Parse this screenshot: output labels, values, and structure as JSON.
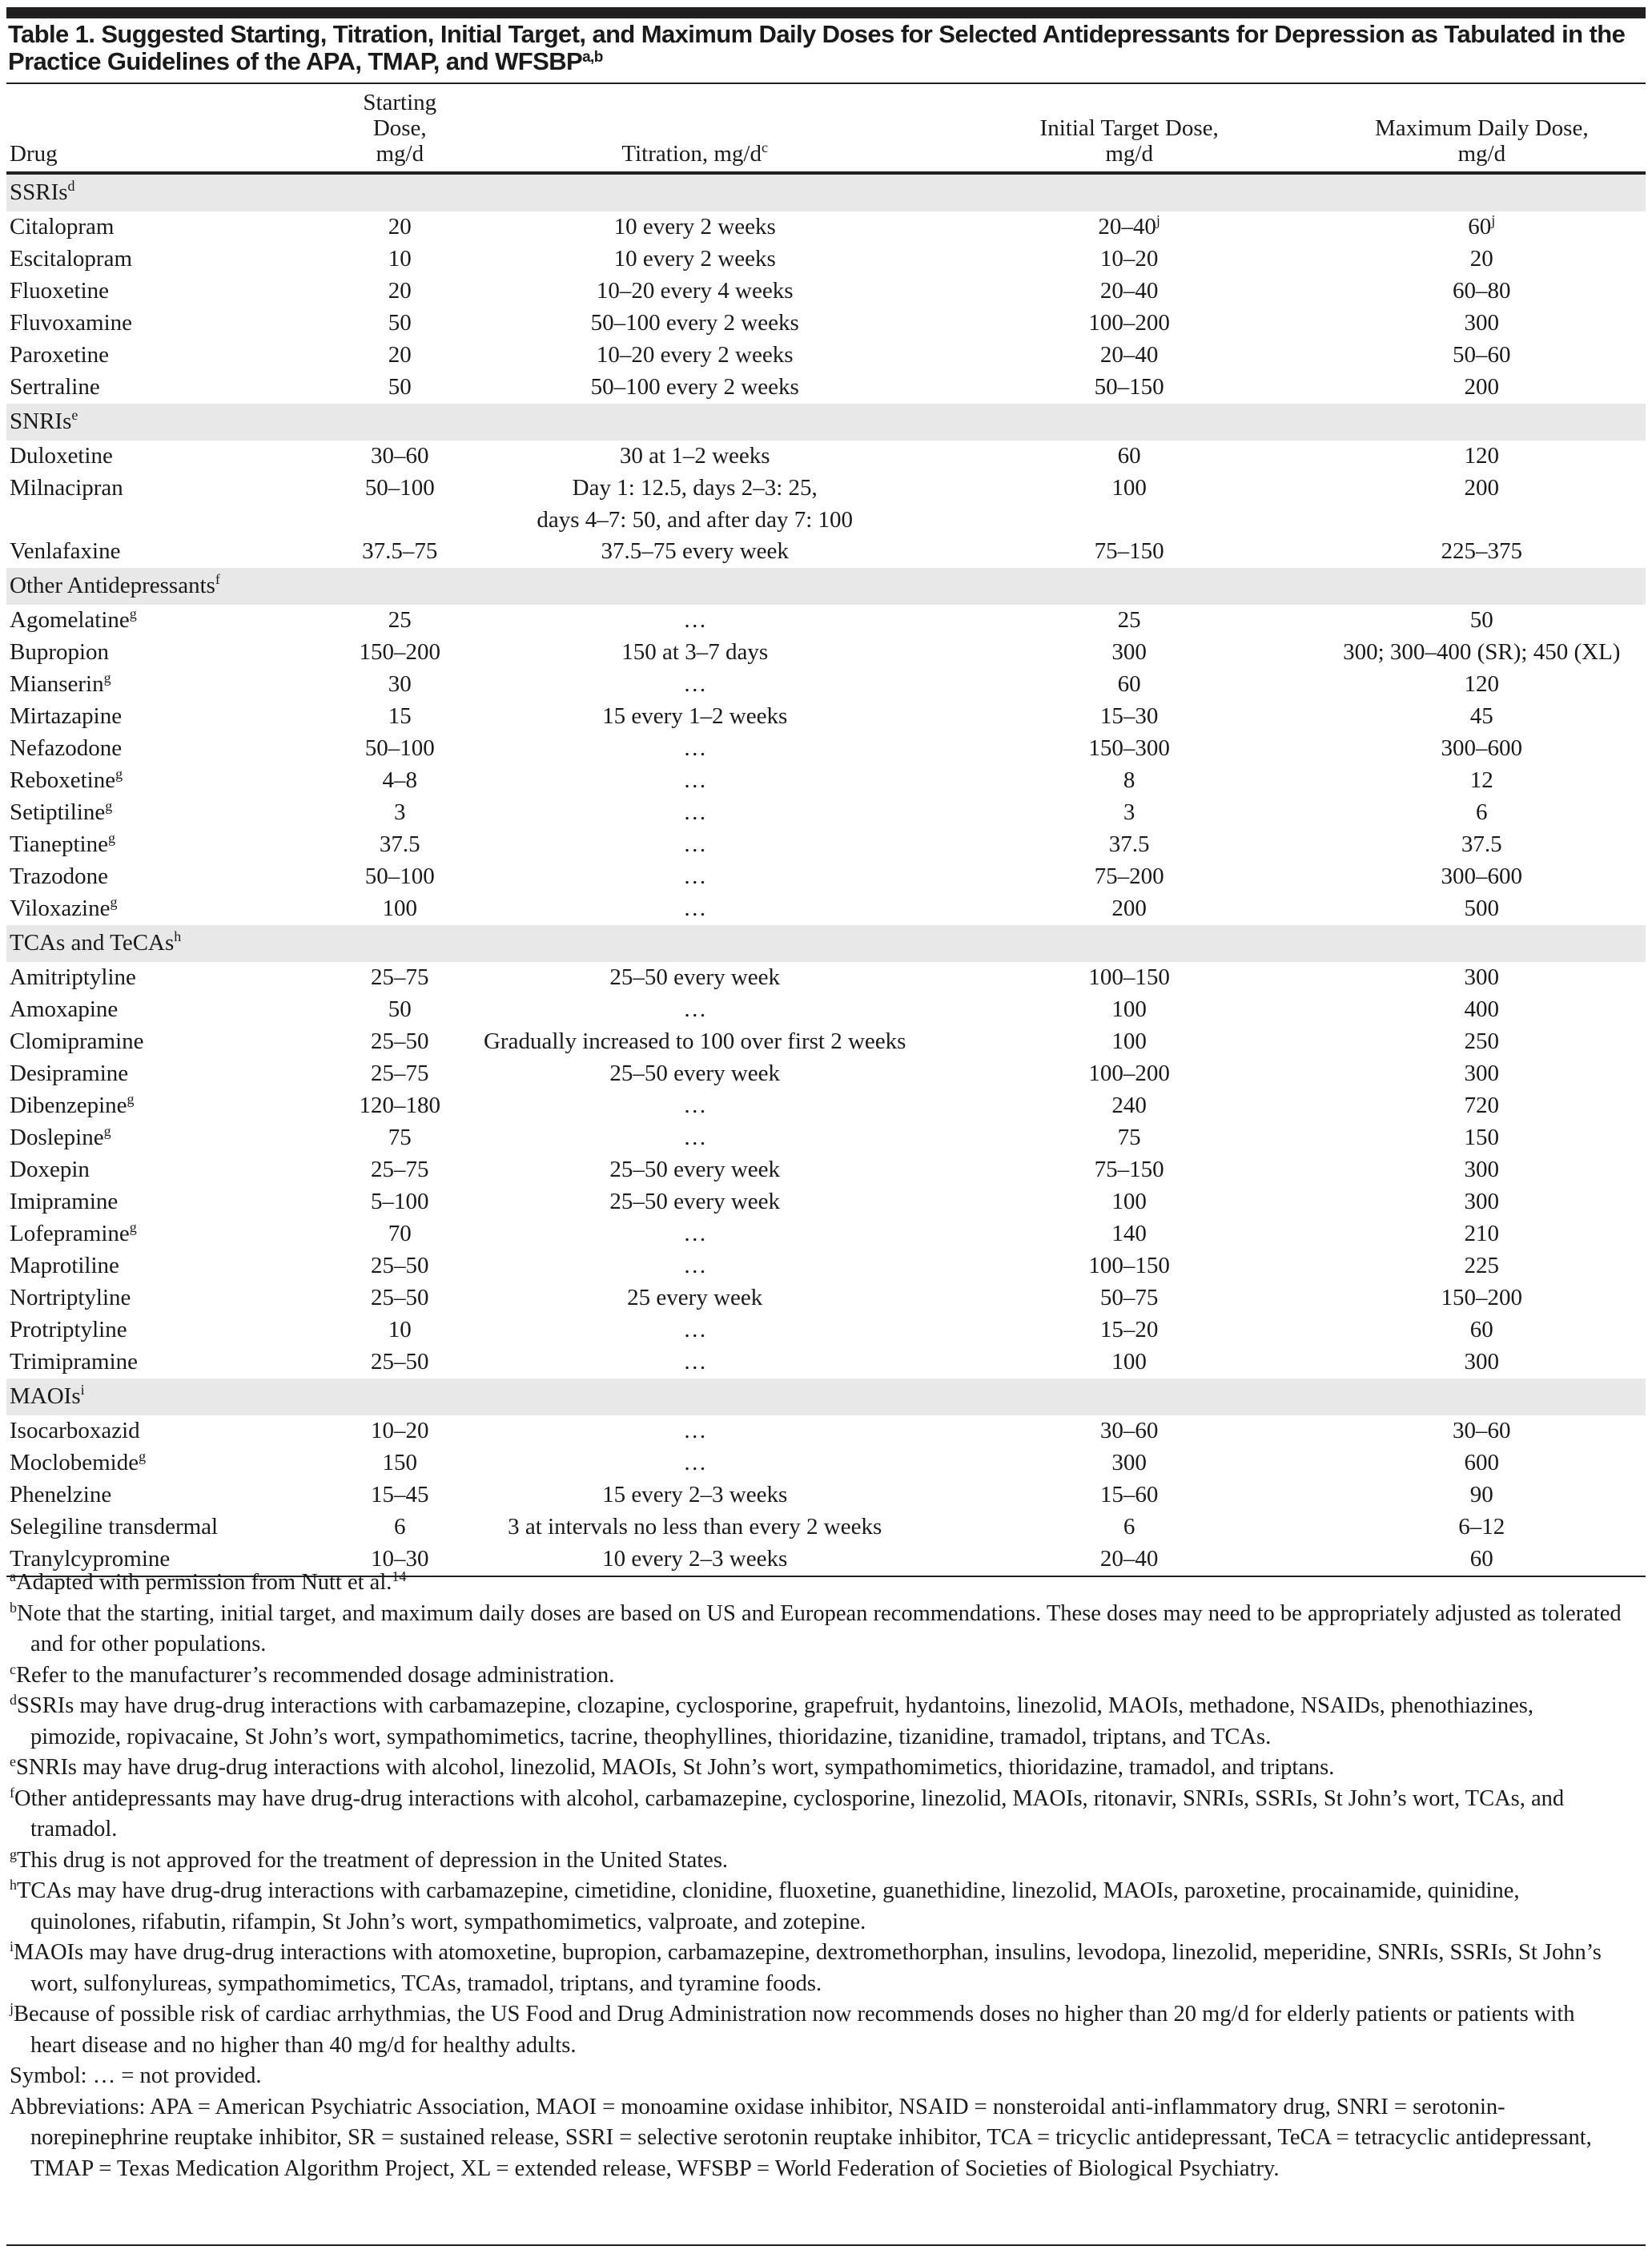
{
  "title": {
    "text": "Table 1. Suggested Starting, Titration, Initial Target, and Maximum Daily Doses for Selected Antidepressants for Depression as Tabulated in the Practice Guidelines of the APA, TMAP, and WFSBP",
    "sup": "a,b"
  },
  "headers": {
    "drug": "Drug",
    "start_1": "Starting Dose,",
    "start_2": "mg/d",
    "titration": "Titration, mg/d",
    "titration_sup": "c",
    "target_1": "Initial Target Dose,",
    "target_2": "mg/d",
    "max_1": "Maximum Daily Dose,",
    "max_2": "mg/d"
  },
  "groups": [
    {
      "label": "SSRIs",
      "sup": "d",
      "rows": [
        {
          "drug": "Citalopram",
          "start": "20",
          "titration": "10 every 2 weeks",
          "target": "20–40",
          "target_sup": "j",
          "max": "60",
          "max_sup": "j"
        },
        {
          "drug": "Escitalopram",
          "start": "10",
          "titration": "10 every 2 weeks",
          "target": "10–20",
          "max": "20"
        },
        {
          "drug": "Fluoxetine",
          "start": "20",
          "titration": "10–20 every 4 weeks",
          "target": "20–40",
          "max": "60–80"
        },
        {
          "drug": "Fluvoxamine",
          "start": "50",
          "titration": "50–100 every 2 weeks",
          "target": "100–200",
          "max": "300"
        },
        {
          "drug": "Paroxetine",
          "start": "20",
          "titration": "10–20 every 2 weeks",
          "target": "20–40",
          "max": "50–60"
        },
        {
          "drug": "Sertraline",
          "start": "50",
          "titration": "50–100 every 2 weeks",
          "target": "50–150",
          "max": "200"
        }
      ]
    },
    {
      "label": "SNRIs",
      "sup": "e",
      "rows": [
        {
          "drug": "Duloxetine",
          "start": "30–60",
          "titration": "30 at 1–2 weeks",
          "target": "60",
          "max": "120"
        },
        {
          "drug": "Milnacipran",
          "start": "50–100",
          "titration": "Day 1: 12.5, days 2–3: 25,",
          "titration_2": "days 4–7: 50, and after day 7: 100",
          "target": "100",
          "max": "200"
        },
        {
          "drug": "Venlafaxine",
          "start": "37.5–75",
          "titration": "37.5–75 every week",
          "target": "75–150",
          "max": "225–375"
        }
      ]
    },
    {
      "label": "Other Antidepressants",
      "sup": "f",
      "rows": [
        {
          "drug": "Agomelatine",
          "drug_sup": "g",
          "start": "25",
          "titration": "…",
          "target": "25",
          "max": "50"
        },
        {
          "drug": "Bupropion",
          "start": "150–200",
          "titration": "150 at 3–7 days",
          "target": "300",
          "max": "300; 300–400 (SR); 450 (XL)"
        },
        {
          "drug": "Mianserin",
          "drug_sup": "g",
          "start": "30",
          "titration": "…",
          "target": "60",
          "max": "120"
        },
        {
          "drug": "Mirtazapine",
          "start": "15",
          "titration": "15 every 1–2 weeks",
          "target": "15–30",
          "max": "45"
        },
        {
          "drug": "Nefazodone",
          "start": "50–100",
          "titration": "…",
          "target": "150–300",
          "max": "300–600"
        },
        {
          "drug": "Reboxetine",
          "drug_sup": "g",
          "start": "4–8",
          "titration": "…",
          "target": "8",
          "max": "12"
        },
        {
          "drug": "Setiptiline",
          "drug_sup": "g",
          "start": "3",
          "titration": "…",
          "target": "3",
          "max": "6"
        },
        {
          "drug": "Tianeptine",
          "drug_sup": "g",
          "start": "37.5",
          "titration": "…",
          "target": "37.5",
          "max": "37.5"
        },
        {
          "drug": "Trazodone",
          "start": "50–100",
          "titration": "…",
          "target": "75–200",
          "max": "300–600"
        },
        {
          "drug": "Viloxazine",
          "drug_sup": "g",
          "start": "100",
          "titration": "…",
          "target": "200",
          "max": "500"
        }
      ]
    },
    {
      "label": "TCAs and TeCAs",
      "sup": "h",
      "rows": [
        {
          "drug": "Amitriptyline",
          "start": "25–75",
          "titration": "25–50 every week",
          "target": "100–150",
          "max": "300"
        },
        {
          "drug": "Amoxapine",
          "start": "50",
          "titration": "…",
          "target": "100",
          "max": "400"
        },
        {
          "drug": "Clomipramine",
          "start": "25–50",
          "titration": "Gradually increased to 100 over first 2 weeks",
          "target": "100",
          "max": "250"
        },
        {
          "drug": "Desipramine",
          "start": "25–75",
          "titration": "25–50 every week",
          "target": "100–200",
          "max": "300"
        },
        {
          "drug": "Dibenzepine",
          "drug_sup": "g",
          "start": "120–180",
          "titration": "…",
          "target": "240",
          "max": "720"
        },
        {
          "drug": "Doslepine",
          "drug_sup": "g",
          "start": "75",
          "titration": "…",
          "target": "75",
          "max": "150"
        },
        {
          "drug": "Doxepin",
          "start": "25–75",
          "titration": "25–50 every week",
          "target": "75–150",
          "max": "300"
        },
        {
          "drug": "Imipramine",
          "start": "5–100",
          "titration": "25–50 every week",
          "target": "100",
          "max": "300"
        },
        {
          "drug": "Lofepramine",
          "drug_sup": "g",
          "start": "70",
          "titration": "…",
          "target": "140",
          "max": "210"
        },
        {
          "drug": "Maprotiline",
          "start": "25–50",
          "titration": "…",
          "target": "100–150",
          "max": "225"
        },
        {
          "drug": "Nortriptyline",
          "start": "25–50",
          "titration": "25 every week",
          "target": "50–75",
          "max": "150–200"
        },
        {
          "drug": "Protriptyline",
          "start": "10",
          "titration": "…",
          "target": "15–20",
          "max": "60"
        },
        {
          "drug": "Trimipramine",
          "start": "25–50",
          "titration": "…",
          "target": "100",
          "max": "300"
        }
      ]
    },
    {
      "label": "MAOIs",
      "sup": "i",
      "rows": [
        {
          "drug": "Isocarboxazid",
          "start": "10–20",
          "titration": "…",
          "target": "30–60",
          "max": "30–60"
        },
        {
          "drug": "Moclobemide",
          "drug_sup": "g",
          "start": "150",
          "titration": "…",
          "target": "300",
          "max": "600"
        },
        {
          "drug": "Phenelzine",
          "start": "15–45",
          "titration": "15 every 2–3 weeks",
          "target": "15–60",
          "max": "90"
        },
        {
          "drug": "Selegiline transdermal",
          "start": "6",
          "titration": "3 at intervals no less than every 2 weeks",
          "target": "6",
          "max": "6–12"
        },
        {
          "drug": "Tranylcypromine",
          "start": "10–30",
          "titration": "10 every 2–3 weeks",
          "target": "20–40",
          "max": "60"
        }
      ]
    }
  ],
  "footnotes": [
    {
      "sup": "a",
      "text": "Adapted with permission from Nutt et al.",
      "ref": "14"
    },
    {
      "sup": "b",
      "text": "Note that the starting, initial target, and maximum daily doses are based on US and European recommendations. These doses may need to be appropriately adjusted as tolerated and for other populations."
    },
    {
      "sup": "c",
      "text": "Refer to the manufacturer’s recommended dosage administration."
    },
    {
      "sup": "d",
      "text": "SSRIs may have drug-drug interactions with carbamazepine, clozapine, cyclosporine, grapefruit, hydantoins, linezolid, MAOIs, methadone, NSAIDs, phenothiazines, pimozide, ropivacaine, St John’s wort, sympathomimetics, tacrine, theophyllines, thioridazine, tizanidine, tramadol, triptans, and TCAs."
    },
    {
      "sup": "e",
      "text": "SNRIs may have drug-drug interactions with alcohol, linezolid, MAOIs, St John’s wort, sympathomimetics, thioridazine, tramadol, and triptans."
    },
    {
      "sup": "f",
      "text": "Other antidepressants may have drug-drug interactions with alcohol, carbamazepine, cyclosporine, linezolid, MAOIs, ritonavir, SNRIs, SSRIs, St John’s wort, TCAs, and tramadol."
    },
    {
      "sup": "g",
      "text": "This drug is not approved for the treatment of depression in the United States."
    },
    {
      "sup": "h",
      "text": "TCAs may have drug-drug interactions with carbamazepine, cimetidine, clonidine, fluoxetine, guanethidine, linezolid, MAOIs, paroxetine, procainamide, quinidine, quinolones, rifabutin, rifampin, St John’s wort, sympathomimetics, valproate, and zotepine."
    },
    {
      "sup": "i",
      "text": "MAOIs may have drug-drug interactions with atomoxetine, bupropion, carbamazepine, dextromethorphan, insulins, levodopa, linezolid, meperidine, SNRIs, SSRIs, St John’s wort, sulfonylureas, sympathomimetics, TCAs, tramadol, triptans, and tyramine foods."
    },
    {
      "sup": "j",
      "text": "Because of possible risk of cardiac arrhythmias, the US Food and Drug Administration now recommends doses no higher than 20 mg/d for elderly patients or patients with heart disease and no higher than 40 mg/d for healthy adults."
    },
    {
      "sup": "",
      "text": "Symbol: … = not provided."
    },
    {
      "sup": "",
      "text": "Abbreviations: APA = American Psychiatric Association, MAOI = monoamine oxidase inhibitor, NSAID = nonsteroidal anti-inflammatory drug, SNRI = serotonin-norepinephrine reuptake inhibitor, SR = sustained release, SSRI = selective serotonin reuptake inhibitor, TCA = tricyclic antidepressant, TeCA = tetracyclic antidepressant, TMAP = Texas Medication Algorithm Project, XL = extended release, WFSBP = World Federation of Societies of Biological Psychiatry."
    }
  ]
}
